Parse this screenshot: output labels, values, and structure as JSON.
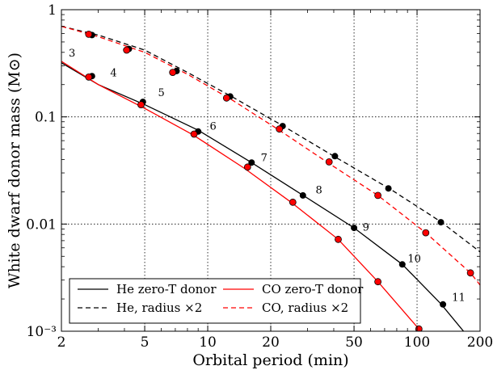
{
  "chart_data": {
    "type": "line",
    "title": "",
    "xlabel": "Orbital period (min)",
    "ylabel": "White dwarf donor mass (M⊙)",
    "xscale": "log",
    "yscale": "log",
    "xlim": [
      2,
      200
    ],
    "ylim": [
      0.001,
      1
    ],
    "grid": true,
    "legend_position": "bottom-left",
    "x_ticks": [
      {
        "value": 2,
        "label": "2"
      },
      {
        "value": 5,
        "label": "5"
      },
      {
        "value": 10,
        "label": "10"
      },
      {
        "value": 20,
        "label": "20"
      },
      {
        "value": 50,
        "label": "50"
      },
      {
        "value": 100,
        "label": "100"
      },
      {
        "value": 200,
        "label": "200"
      }
    ],
    "y_ticks": [
      {
        "value": 1,
        "label": "1"
      },
      {
        "value": 0.1,
        "label": "0.1"
      },
      {
        "value": 0.01,
        "label": "0.01"
      },
      {
        "value": 0.001,
        "label": "10⁻³"
      }
    ],
    "series": [
      {
        "name": "He zero-T donor",
        "color": "#000000",
        "dash": "solid",
        "x": [
          2,
          3,
          5,
          9,
          16,
          28,
          50,
          85,
          130,
          200
        ],
        "y": [
          0.32,
          0.2,
          0.13,
          0.075,
          0.038,
          0.019,
          0.0092,
          0.0042,
          0.0018,
          0.00065
        ],
        "points": [
          {
            "x": 2.8,
            "y": 0.24
          },
          {
            "x": 4.9,
            "y": 0.138
          },
          {
            "x": 9.0,
            "y": 0.073
          },
          {
            "x": 16.2,
            "y": 0.0375
          },
          {
            "x": 28.5,
            "y": 0.0185
          },
          {
            "x": 50,
            "y": 0.0092
          },
          {
            "x": 85,
            "y": 0.0042
          },
          {
            "x": 133,
            "y": 0.00178
          }
        ]
      },
      {
        "name": "He, radius ×2",
        "color": "#000000",
        "dash": "dashed",
        "x": [
          2,
          3,
          5,
          8,
          13,
          23,
          40,
          75,
          130,
          200
        ],
        "y": [
          0.7,
          0.58,
          0.42,
          0.26,
          0.155,
          0.082,
          0.043,
          0.021,
          0.0105,
          0.0055
        ],
        "points": [
          {
            "x": 2.8,
            "y": 0.58
          },
          {
            "x": 4.2,
            "y": 0.43
          },
          {
            "x": 7.1,
            "y": 0.268
          },
          {
            "x": 12.8,
            "y": 0.155
          },
          {
            "x": 22.8,
            "y": 0.082
          },
          {
            "x": 40.5,
            "y": 0.043
          },
          {
            "x": 73,
            "y": 0.0215
          },
          {
            "x": 130,
            "y": 0.0104
          }
        ]
      },
      {
        "name": "CO zero-T donor",
        "color": "#ff0000",
        "dash": "solid",
        "x": [
          2,
          3,
          5,
          8.5,
          15,
          25,
          42,
          65,
          102
        ],
        "y": [
          0.33,
          0.2,
          0.12,
          0.068,
          0.033,
          0.016,
          0.0072,
          0.0029,
          0.00105
        ],
        "points": [
          {
            "x": 2.7,
            "y": 0.235
          },
          {
            "x": 4.8,
            "y": 0.13
          },
          {
            "x": 8.6,
            "y": 0.069
          },
          {
            "x": 15.5,
            "y": 0.034
          },
          {
            "x": 25.5,
            "y": 0.016
          },
          {
            "x": 42,
            "y": 0.0072
          },
          {
            "x": 65,
            "y": 0.0029
          },
          {
            "x": 102,
            "y": 0.00105
          }
        ]
      },
      {
        "name": "CO, radius ×2",
        "color": "#ff0000",
        "dash": "dashed",
        "x": [
          2,
          3,
          5,
          8,
          13,
          22,
          37,
          65,
          110,
          180,
          200
        ],
        "y": [
          0.7,
          0.56,
          0.4,
          0.25,
          0.145,
          0.075,
          0.038,
          0.0185,
          0.0083,
          0.0035,
          0.0027
        ],
        "points": [
          {
            "x": 2.7,
            "y": 0.59
          },
          {
            "x": 4.1,
            "y": 0.42
          },
          {
            "x": 6.8,
            "y": 0.26
          },
          {
            "x": 12.3,
            "y": 0.15
          },
          {
            "x": 22,
            "y": 0.077
          },
          {
            "x": 38,
            "y": 0.038
          },
          {
            "x": 65,
            "y": 0.0185
          },
          {
            "x": 110,
            "y": 0.0083
          },
          {
            "x": 180,
            "y": 0.0035
          }
        ]
      }
    ],
    "annotations": [
      {
        "text": "3",
        "x": 2.25,
        "y": 0.4
      },
      {
        "text": "4",
        "x": 3.55,
        "y": 0.26
      },
      {
        "text": "5",
        "x": 6.0,
        "y": 0.17
      },
      {
        "text": "6",
        "x": 10.6,
        "y": 0.083
      },
      {
        "text": "7",
        "x": 18.6,
        "y": 0.042
      },
      {
        "text": "8",
        "x": 34.0,
        "y": 0.021
      },
      {
        "text": "9",
        "x": 57.0,
        "y": 0.0095
      },
      {
        "text": "10",
        "x": 97.0,
        "y": 0.0048
      },
      {
        "text": "11",
        "x": 158.0,
        "y": 0.0021
      }
    ]
  }
}
